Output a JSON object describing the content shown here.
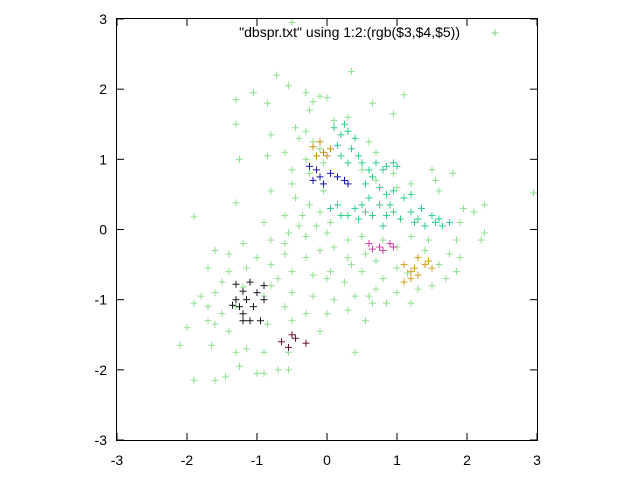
{
  "chart_data": {
    "type": "scatter",
    "title": "",
    "xlabel": "",
    "ylabel": "",
    "xlim": [
      -3,
      3
    ],
    "ylim": [
      -3,
      3
    ],
    "xticks": [
      "-3",
      "-2",
      "-1",
      "0",
      "1",
      "2",
      "3"
    ],
    "yticks": [
      "-3",
      "-2",
      "-1",
      "0",
      "1",
      "2",
      "3"
    ],
    "grid": false,
    "legend": {
      "position": "top-right",
      "label": "\"dbspr.txt\" using 1:2:(rgb($3,$4,$5))",
      "color": "#7ed67e"
    },
    "marker": "plus",
    "series": [
      {
        "color": "#8fe08f",
        "points": [
          [
            -0.5,
            2.95
          ],
          [
            0.35,
            2.25
          ],
          [
            -0.72,
            2.2
          ],
          [
            -0.55,
            2.05
          ],
          [
            -1.05,
            1.95
          ],
          [
            -0.3,
            1.95
          ],
          [
            -0.1,
            1.9
          ],
          [
            -1.3,
            1.85
          ],
          [
            0.0,
            1.88
          ],
          [
            1.1,
            1.92
          ],
          [
            -0.2,
            1.82
          ],
          [
            -0.85,
            1.8
          ],
          [
            0.65,
            1.8
          ],
          [
            -0.25,
            1.7
          ],
          [
            0.95,
            1.65
          ],
          [
            0.3,
            1.6
          ],
          [
            -1.3,
            1.5
          ],
          [
            0.1,
            1.55
          ],
          [
            -0.45,
            1.45
          ],
          [
            -0.3,
            1.4
          ],
          [
            -0.8,
            1.35
          ],
          [
            -0.4,
            1.3
          ],
          [
            -0.2,
            1.25
          ],
          [
            -0.1,
            1.15
          ],
          [
            0.6,
            1.25
          ],
          [
            0.7,
            1.1
          ],
          [
            -0.3,
            1.0
          ],
          [
            -0.85,
            1.05
          ],
          [
            -0.6,
            1.1
          ],
          [
            -1.25,
            1.0
          ],
          [
            -0.05,
            0.95
          ],
          [
            -0.5,
            0.85
          ],
          [
            -0.25,
            0.8
          ],
          [
            -0.5,
            0.65
          ],
          [
            -0.8,
            0.55
          ],
          [
            -0.05,
            0.55
          ],
          [
            -0.45,
            0.45
          ],
          [
            -0.25,
            0.35
          ],
          [
            -1.3,
            0.38
          ],
          [
            -0.35,
            0.2
          ],
          [
            -0.1,
            0.25
          ],
          [
            -0.6,
            0.2
          ],
          [
            -0.15,
            0.05
          ],
          [
            0.05,
            0.1
          ],
          [
            -0.4,
            0.05
          ],
          [
            -0.9,
            0.1
          ],
          [
            -1.9,
            0.18
          ],
          [
            -0.55,
            -0.05
          ],
          [
            -0.3,
            -0.1
          ],
          [
            -0.6,
            -0.2
          ],
          [
            -0.8,
            -0.15
          ],
          [
            0.0,
            -0.05
          ],
          [
            0.3,
            -0.15
          ],
          [
            0.5,
            -0.1
          ],
          [
            -1.2,
            -0.2
          ],
          [
            -1.4,
            -0.35
          ],
          [
            -1.6,
            -0.3
          ],
          [
            -1.0,
            -0.4
          ],
          [
            -0.8,
            -0.5
          ],
          [
            -0.6,
            -0.35
          ],
          [
            -0.3,
            -0.4
          ],
          [
            -0.1,
            -0.3
          ],
          [
            0.1,
            -0.25
          ],
          [
            0.3,
            -0.4
          ],
          [
            0.55,
            -0.35
          ],
          [
            0.7,
            -0.45
          ],
          [
            -1.15,
            -0.55
          ],
          [
            -1.4,
            -0.6
          ],
          [
            -1.7,
            -0.55
          ],
          [
            -0.5,
            -0.6
          ],
          [
            -0.2,
            -0.65
          ],
          [
            0.0,
            -0.7
          ],
          [
            0.25,
            -0.75
          ],
          [
            0.5,
            -0.6
          ],
          [
            0.8,
            -0.7
          ],
          [
            1.0,
            -0.55
          ],
          [
            -0.8,
            -0.8
          ],
          [
            -1.5,
            -0.75
          ],
          [
            -1.6,
            -0.9
          ],
          [
            -1.8,
            -0.95
          ],
          [
            -1.7,
            -1.1
          ],
          [
            -1.9,
            -1.05
          ],
          [
            -1.5,
            -1.2
          ],
          [
            -1.3,
            -1.1
          ],
          [
            -0.9,
            -0.95
          ],
          [
            -0.5,
            -0.9
          ],
          [
            -0.2,
            -0.95
          ],
          [
            0.1,
            -1.0
          ],
          [
            0.4,
            -0.95
          ],
          [
            0.7,
            -0.85
          ],
          [
            0.65,
            -1.05
          ],
          [
            -0.6,
            -1.1
          ],
          [
            -0.3,
            -1.2
          ],
          [
            0.0,
            -1.2
          ],
          [
            0.3,
            -1.15
          ],
          [
            -1.7,
            -1.3
          ],
          [
            -1.6,
            -1.35
          ],
          [
            -1.4,
            -1.45
          ],
          [
            -0.85,
            -1.35
          ],
          [
            -0.5,
            -1.3
          ],
          [
            -0.1,
            -1.45
          ],
          [
            -2.0,
            -1.4
          ],
          [
            -2.1,
            -1.65
          ],
          [
            -1.65,
            -1.65
          ],
          [
            -1.3,
            -1.75
          ],
          [
            -1.15,
            -1.7
          ],
          [
            -0.9,
            -1.75
          ],
          [
            -0.55,
            -1.75
          ],
          [
            -1.9,
            -2.15
          ],
          [
            -1.6,
            -2.15
          ],
          [
            -1.45,
            -2.1
          ],
          [
            -1.25,
            -1.95
          ],
          [
            -1.0,
            -2.05
          ],
          [
            -0.9,
            -2.05
          ],
          [
            -0.7,
            -2.0
          ],
          [
            -0.55,
            -2.0
          ],
          [
            0.4,
            -1.75
          ],
          [
            0.55,
            -1.3
          ],
          [
            0.6,
            -0.95
          ],
          [
            0.85,
            -1.05
          ],
          [
            1.2,
            -1.05
          ],
          [
            1.0,
            -0.9
          ],
          [
            1.3,
            -0.85
          ],
          [
            1.5,
            -0.8
          ],
          [
            1.7,
            -0.7
          ],
          [
            1.85,
            -0.6
          ],
          [
            1.6,
            -0.5
          ],
          [
            1.75,
            -0.35
          ],
          [
            1.9,
            -0.4
          ],
          [
            1.4,
            -0.3
          ],
          [
            1.0,
            -0.25
          ],
          [
            0.8,
            -0.15
          ],
          [
            1.2,
            -0.1
          ],
          [
            1.45,
            -0.15
          ],
          [
            1.85,
            -0.15
          ],
          [
            2.2,
            -0.15
          ],
          [
            2.25,
            -0.05
          ],
          [
            1.9,
            0.1
          ],
          [
            2.1,
            0.25
          ],
          [
            1.95,
            0.3
          ],
          [
            2.25,
            0.35
          ],
          [
            2.95,
            0.52
          ],
          [
            1.6,
            0.55
          ],
          [
            1.55,
            0.7
          ],
          [
            1.8,
            0.8
          ],
          [
            1.5,
            0.85
          ],
          [
            1.2,
            0.65
          ],
          [
            1.0,
            0.6
          ],
          [
            0.7,
            0.7
          ],
          [
            0.5,
            0.85
          ],
          [
            0.95,
            0.8
          ],
          [
            -1.2,
            -0.82
          ],
          [
            0.05,
            -0.6
          ],
          [
            1.15,
            -0.62
          ],
          [
            -0.7,
            -0.7
          ],
          [
            0.35,
            -0.5
          ]
        ]
      },
      {
        "color": "#2ed08a",
        "points": [
          [
            0.1,
            1.45
          ],
          [
            0.2,
            1.35
          ],
          [
            0.3,
            1.4
          ],
          [
            0.25,
            1.5
          ],
          [
            0.4,
            1.3
          ],
          [
            0.15,
            1.2
          ],
          [
            0.35,
            1.15
          ],
          [
            0.45,
            1.05
          ],
          [
            0.3,
            0.95
          ],
          [
            0.2,
            1.05
          ],
          [
            0.5,
            0.95
          ],
          [
            0.6,
            0.85
          ],
          [
            0.7,
            0.95
          ],
          [
            0.85,
            0.9
          ],
          [
            0.95,
            0.95
          ],
          [
            1.0,
            0.9
          ],
          [
            0.8,
            0.85
          ],
          [
            0.65,
            0.75
          ],
          [
            0.55,
            0.65
          ],
          [
            0.75,
            0.6
          ],
          [
            0.85,
            0.5
          ],
          [
            0.95,
            0.55
          ],
          [
            1.1,
            0.45
          ],
          [
            1.2,
            0.5
          ],
          [
            0.9,
            0.35
          ],
          [
            0.75,
            0.35
          ],
          [
            0.6,
            0.45
          ],
          [
            0.5,
            0.35
          ],
          [
            0.4,
            0.3
          ],
          [
            0.3,
            0.2
          ],
          [
            0.15,
            0.35
          ],
          [
            0.2,
            0.2
          ],
          [
            0.05,
            0.3
          ],
          [
            0.45,
            0.15
          ],
          [
            0.65,
            0.2
          ],
          [
            0.85,
            0.2
          ],
          [
            1.05,
            0.15
          ],
          [
            1.2,
            0.25
          ],
          [
            1.35,
            0.3
          ],
          [
            1.5,
            0.2
          ],
          [
            1.55,
            0.1
          ],
          [
            1.4,
            0.05
          ],
          [
            1.25,
            0.1
          ],
          [
            1.65,
            0.05
          ],
          [
            1.75,
            0.1
          ],
          [
            1.6,
            0.15
          ],
          [
            1.3,
            0.15
          ],
          [
            0.95,
            0.25
          ],
          [
            0.55,
            0.25
          ],
          [
            0.8,
            0.05
          ]
        ]
      },
      {
        "color": "#c8901a",
        "points": [
          [
            -0.2,
            1.18
          ],
          [
            -0.1,
            1.25
          ],
          [
            -0.05,
            1.1
          ],
          [
            0.0,
            1.05
          ],
          [
            -0.15,
            1.05
          ],
          [
            0.05,
            1.15
          ]
        ]
      },
      {
        "color": "#1616b0",
        "points": [
          [
            -0.25,
            0.9
          ],
          [
            -0.2,
            0.7
          ],
          [
            -0.1,
            0.75
          ],
          [
            -0.05,
            0.65
          ],
          [
            0.05,
            0.8
          ],
          [
            0.15,
            0.75
          ],
          [
            0.25,
            0.7
          ],
          [
            0.3,
            0.65
          ],
          [
            -0.15,
            0.85
          ]
        ]
      },
      {
        "color": "#d040a8",
        "points": [
          [
            0.6,
            -0.2
          ],
          [
            0.65,
            -0.28
          ],
          [
            0.75,
            -0.25
          ],
          [
            0.8,
            -0.3
          ],
          [
            0.9,
            -0.2
          ],
          [
            0.95,
            -0.25
          ]
        ]
      },
      {
        "color": "#d4a020",
        "points": [
          [
            1.1,
            -0.5
          ],
          [
            1.2,
            -0.6
          ],
          [
            1.25,
            -0.55
          ],
          [
            1.3,
            -0.65
          ],
          [
            1.3,
            -0.4
          ],
          [
            1.4,
            -0.5
          ],
          [
            1.45,
            -0.45
          ],
          [
            1.5,
            -0.55
          ],
          [
            1.2,
            -0.7
          ],
          [
            1.1,
            -0.75
          ]
        ]
      },
      {
        "color": "#181818",
        "points": [
          [
            -1.3,
            -0.78
          ],
          [
            -1.1,
            -0.75
          ],
          [
            -0.9,
            -0.8
          ],
          [
            -1.2,
            -0.88
          ],
          [
            -1.0,
            -0.9
          ],
          [
            -1.15,
            -1.0
          ],
          [
            -1.3,
            -1.0
          ],
          [
            -1.25,
            -1.1
          ],
          [
            -1.2,
            -1.2
          ],
          [
            -1.05,
            -1.1
          ],
          [
            -0.9,
            -1.0
          ],
          [
            -1.1,
            -1.3
          ],
          [
            -1.2,
            -1.3
          ],
          [
            -0.95,
            -1.3
          ],
          [
            -1.35,
            -1.08
          ]
        ]
      },
      {
        "color": "#6a1030",
        "points": [
          [
            -0.5,
            -1.5
          ],
          [
            -0.45,
            -1.55
          ],
          [
            -0.65,
            -1.6
          ],
          [
            -0.55,
            -1.68
          ],
          [
            -0.3,
            -1.62
          ]
        ]
      }
    ]
  }
}
